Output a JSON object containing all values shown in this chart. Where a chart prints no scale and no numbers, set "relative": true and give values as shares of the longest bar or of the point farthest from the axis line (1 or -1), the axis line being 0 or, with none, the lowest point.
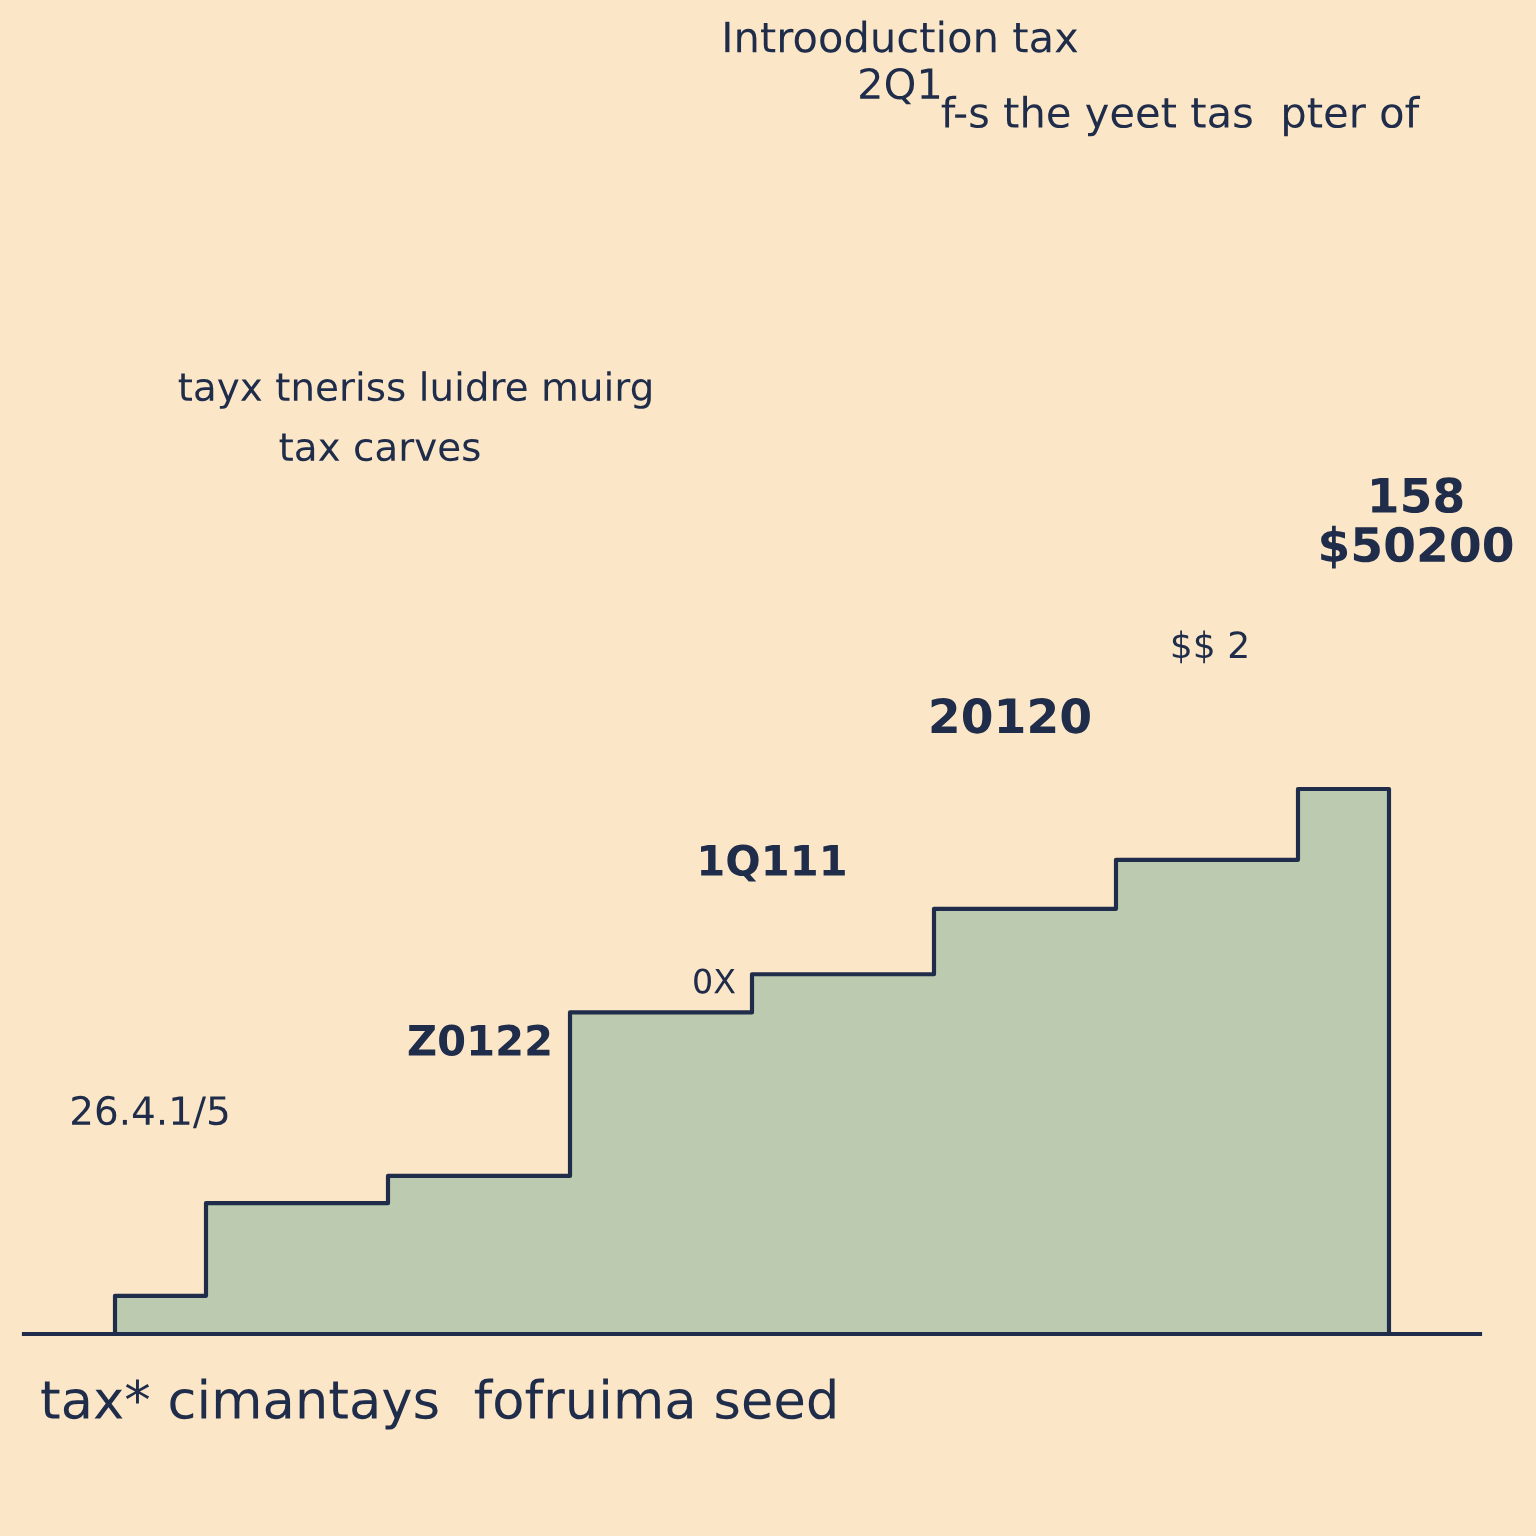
{
  "chart_data": {
    "type": "area",
    "relative": true,
    "title": "Introoduction tax\n2Q1",
    "subtitle": "f-s the yeet tas  pter of",
    "xlabel": "tax* cimantays  fofruima seed",
    "categories": [
      null,
      null,
      null,
      null,
      null,
      null,
      null,
      null
    ],
    "series": [
      {
        "color": "#bccab0",
        "values": [
          0.07,
          0.24,
          0.29,
          0.59,
          0.66,
          0.78,
          0.87,
          1.0
        ]
      }
    ],
    "annotations": [
      "tayx tneriss luidre muirg",
      "tax carves",
      "158\n$50200",
      "$$ 2",
      "20120",
      "1Q111",
      "0X",
      "Z0122",
      "26.4.1/5"
    ],
    "grid": false,
    "legend": false
  }
}
